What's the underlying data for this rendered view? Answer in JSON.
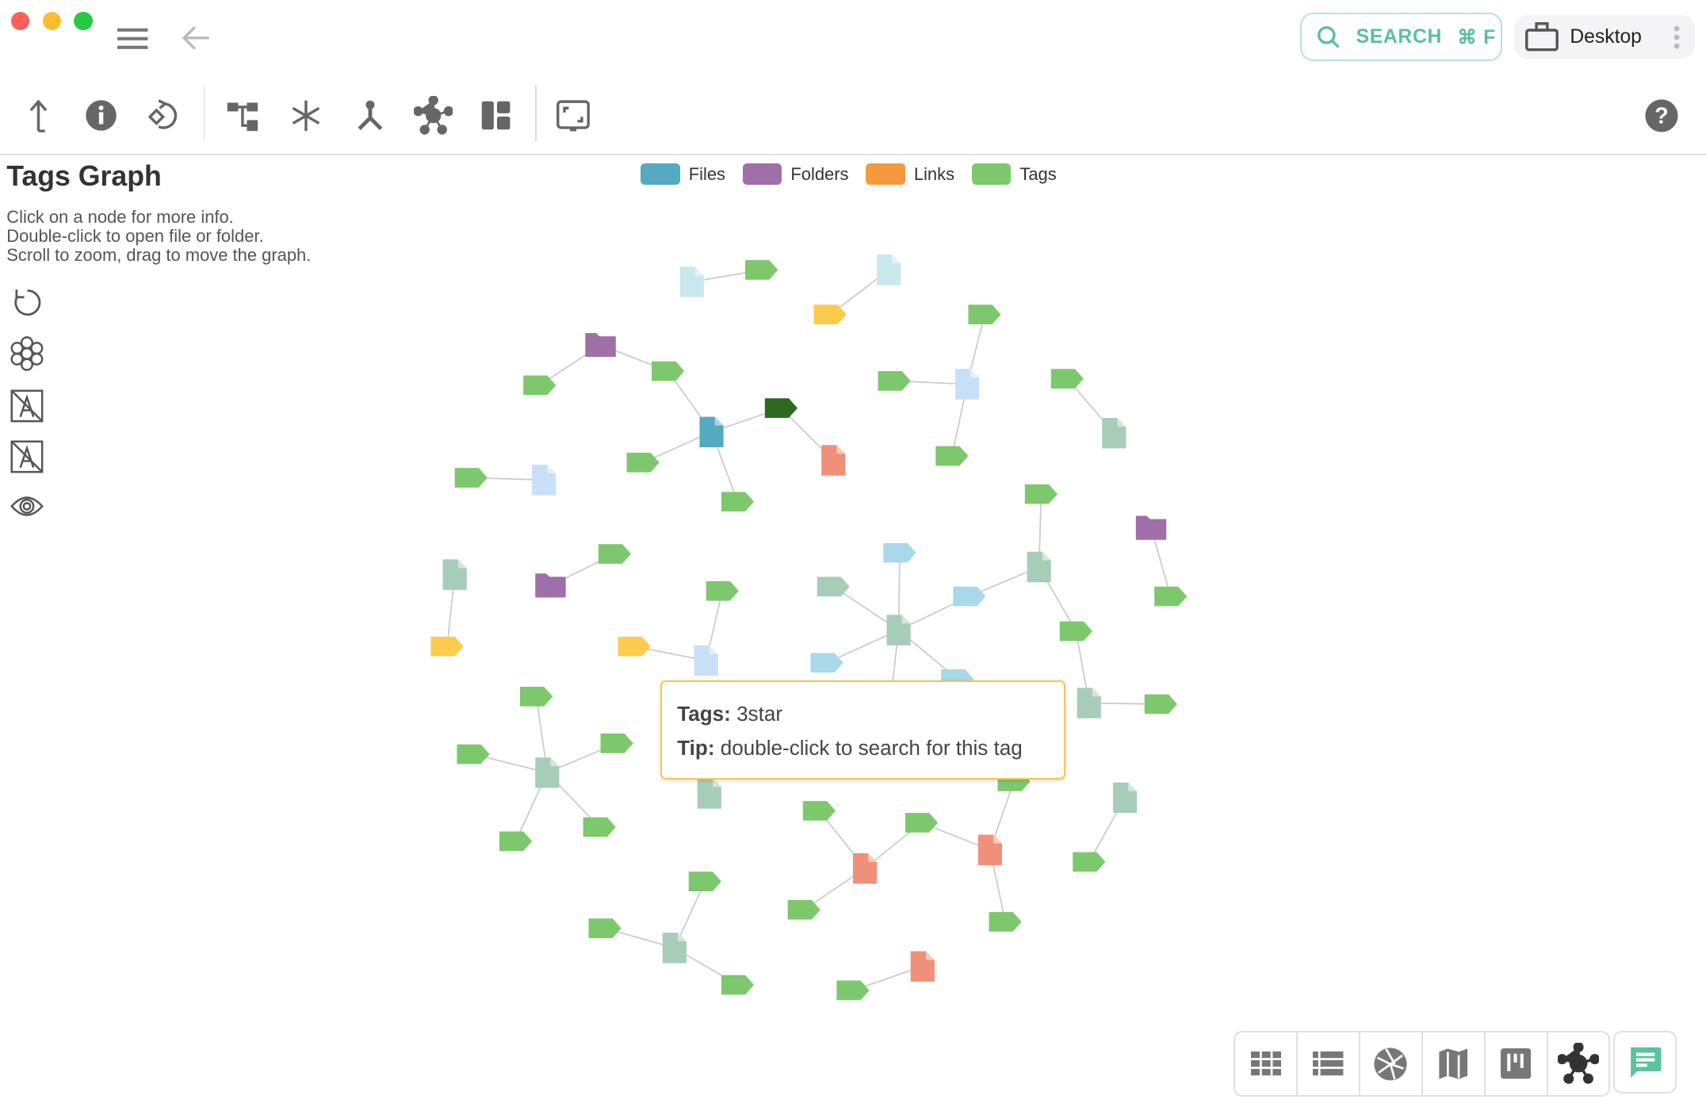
{
  "window": {
    "controls": {
      "close": "#fe5f57",
      "minimize": "#febc2e",
      "maximize": "#28c840"
    }
  },
  "header": {
    "search_label": "SEARCH",
    "search_shortcut": "⌘ F",
    "location": "Desktop",
    "accent": "#5bbf9f"
  },
  "toolbar": {
    "icons": [
      "parent-folder-icon",
      "info-icon",
      "reload-icon",
      "tree-icon",
      "snowflake-icon",
      "fork-icon",
      "network-icon",
      "layout-icon",
      "fullscreen-icon"
    ],
    "help_icon": "help-icon"
  },
  "main": {
    "title": "Tags Graph",
    "instructions": [
      "Click on a node for more info.",
      "Double-click to open file or folder.",
      "Scroll to zoom, drag to move the graph."
    ]
  },
  "legend": [
    {
      "label": "Files",
      "color": "#55a9c1"
    },
    {
      "label": "Folders",
      "color": "#9e6fa9"
    },
    {
      "label": "Links",
      "color": "#f6983d"
    },
    {
      "label": "Tags",
      "color": "#7dc86d"
    }
  ],
  "side_tools": [
    "reset-icon",
    "cluster-icon",
    "hide-labels-icon",
    "show-labels-icon",
    "visibility-icon"
  ],
  "tooltip": {
    "tags_label": "Tags:",
    "tags_value": "3star",
    "tip_label": "Tip:",
    "tip_value": "double-click to search for this tag"
  },
  "perspectives": [
    "grid-icon",
    "list-icon",
    "gallery-icon",
    "map-icon",
    "kanban-icon",
    "graph-icon"
  ],
  "chat_icon": "chat-icon"
}
